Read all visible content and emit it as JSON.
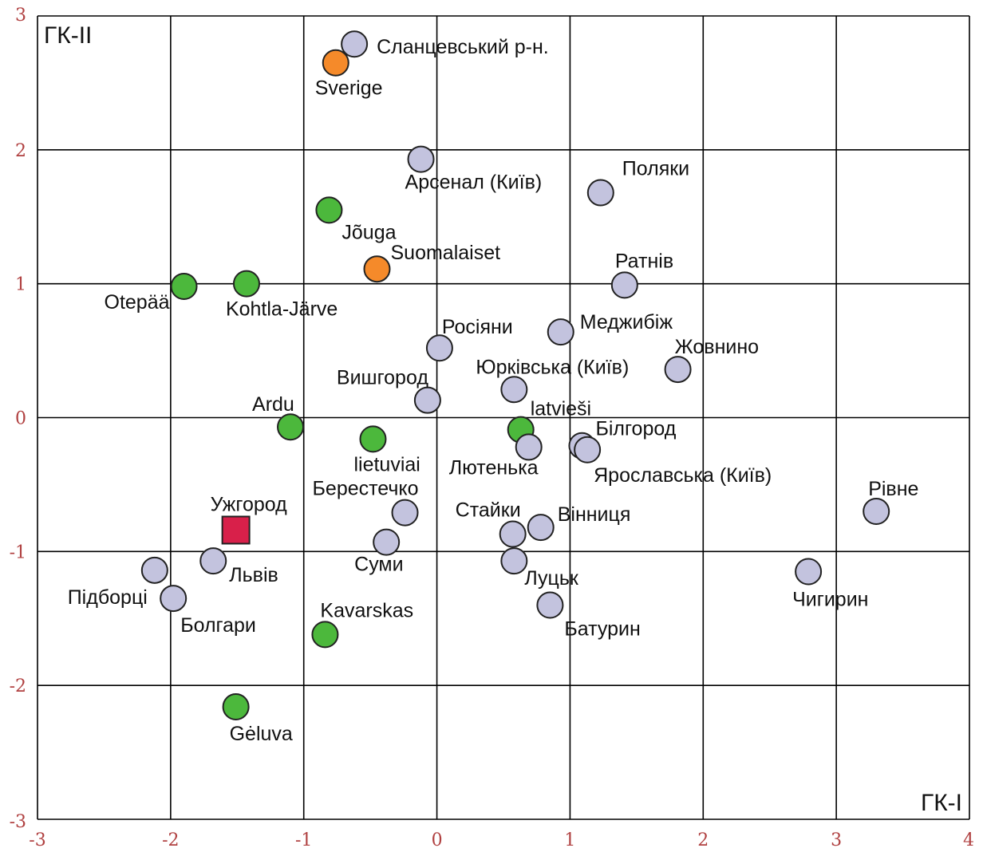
{
  "chart_data": {
    "type": "scatter",
    "xlabel": "ГК-I",
    "ylabel": "ГК-II",
    "xlim": [
      -3,
      4
    ],
    "ylim": [
      -3,
      3
    ],
    "grid": true,
    "x_ticks": [
      "-3",
      "-2",
      "-1",
      "0",
      "1",
      "2",
      "3",
      "4"
    ],
    "y_ticks": [
      "-3",
      "-2",
      "-1",
      "0",
      "1",
      "2",
      "3"
    ],
    "colors": {
      "gray": "#c3c3de",
      "green": "#4cb83c",
      "orange": "#f58a2a",
      "red": "#d8204a"
    },
    "points": [
      {
        "label": "Сланцевський р-н.",
        "x": -0.62,
        "y": 2.79,
        "color": "gray",
        "shape": "circle"
      },
      {
        "label": "Sverige",
        "x": -0.76,
        "y": 2.65,
        "color": "orange",
        "shape": "circle"
      },
      {
        "label": "Арсенал (Київ)",
        "x": -0.12,
        "y": 1.93,
        "color": "gray",
        "shape": "circle"
      },
      {
        "label": "Поляки",
        "x": 1.23,
        "y": 1.68,
        "color": "gray",
        "shape": "circle"
      },
      {
        "label": "Jõuga",
        "x": -0.81,
        "y": 1.55,
        "color": "green",
        "shape": "circle"
      },
      {
        "label": "Suomalaiset",
        "x": -0.45,
        "y": 1.11,
        "color": "orange",
        "shape": "circle"
      },
      {
        "label": "Ратнів",
        "x": 1.41,
        "y": 0.99,
        "color": "gray",
        "shape": "circle"
      },
      {
        "label": "Otepää",
        "x": -1.9,
        "y": 0.98,
        "color": "green",
        "shape": "circle"
      },
      {
        "label": "Kohtla-Järve",
        "x": -1.43,
        "y": 1.0,
        "color": "green",
        "shape": "circle"
      },
      {
        "label": "Меджибіж",
        "x": 0.93,
        "y": 0.64,
        "color": "gray",
        "shape": "circle"
      },
      {
        "label": "Росіяни",
        "x": 0.02,
        "y": 0.52,
        "color": "gray",
        "shape": "circle"
      },
      {
        "label": "Жовнино",
        "x": 1.81,
        "y": 0.36,
        "color": "gray",
        "shape": "circle"
      },
      {
        "label": "Юрківська (Київ)",
        "x": 0.58,
        "y": 0.21,
        "color": "gray",
        "shape": "circle"
      },
      {
        "label": "Вишгород",
        "x": -0.07,
        "y": 0.13,
        "color": "gray",
        "shape": "circle"
      },
      {
        "label": "Ardu",
        "x": -1.1,
        "y": -0.07,
        "color": "green",
        "shape": "circle"
      },
      {
        "label": "latvieši",
        "x": 0.63,
        "y": -0.09,
        "color": "green",
        "shape": "circle"
      },
      {
        "label": "lietuviai",
        "x": -0.48,
        "y": -0.16,
        "color": "green",
        "shape": "circle"
      },
      {
        "label": "Лютенька",
        "x": 0.69,
        "y": -0.22,
        "color": "gray",
        "shape": "circle"
      },
      {
        "label": "Білгород",
        "x": 1.09,
        "y": -0.21,
        "color": "gray",
        "shape": "circle"
      },
      {
        "label": "Ярославська (Київ)",
        "x": 1.13,
        "y": -0.24,
        "color": "gray",
        "shape": "circle"
      },
      {
        "label": "Рівне",
        "x": 3.3,
        "y": -0.7,
        "color": "gray",
        "shape": "circle"
      },
      {
        "label": "Берестечко",
        "x": -0.24,
        "y": -0.71,
        "color": "gray",
        "shape": "circle"
      },
      {
        "label": "Ужгород",
        "x": -1.51,
        "y": -0.84,
        "color": "red",
        "shape": "square"
      },
      {
        "label": "Вінниця",
        "x": 0.78,
        "y": -0.82,
        "color": "gray",
        "shape": "circle"
      },
      {
        "label": "Стайки",
        "x": 0.57,
        "y": -0.87,
        "color": "gray",
        "shape": "circle"
      },
      {
        "label": "Суми",
        "x": -0.38,
        "y": -0.93,
        "color": "gray",
        "shape": "circle"
      },
      {
        "label": "Луцьк",
        "x": 0.58,
        "y": -1.07,
        "color": "gray",
        "shape": "circle"
      },
      {
        "label": "Львів",
        "x": -1.68,
        "y": -1.07,
        "color": "gray",
        "shape": "circle"
      },
      {
        "label": "Підборці",
        "x": -2.12,
        "y": -1.14,
        "color": "gray",
        "shape": "circle"
      },
      {
        "label": "Чигирин",
        "x": 2.79,
        "y": -1.15,
        "color": "gray",
        "shape": "circle"
      },
      {
        "label": "Болгари",
        "x": -1.98,
        "y": -1.35,
        "color": "gray",
        "shape": "circle"
      },
      {
        "label": "Батурин",
        "x": 0.85,
        "y": -1.4,
        "color": "gray",
        "shape": "circle"
      },
      {
        "label": "Kavarskas",
        "x": -0.84,
        "y": -1.62,
        "color": "green",
        "shape": "circle"
      },
      {
        "label": "Gėluva",
        "x": -1.51,
        "y": -2.16,
        "color": "green",
        "shape": "circle"
      }
    ]
  }
}
